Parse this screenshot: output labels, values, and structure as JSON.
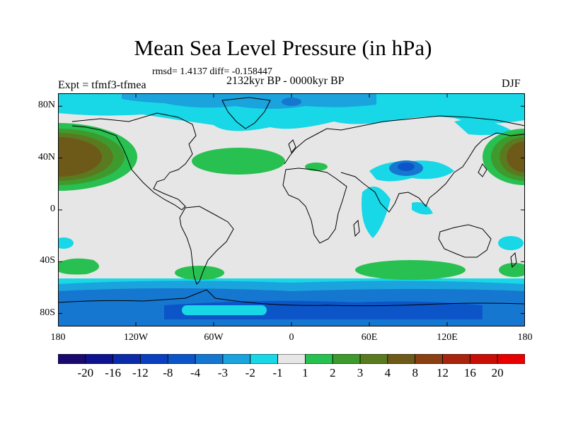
{
  "header": {
    "title": "Mean Sea Level Pressure (in hPa)",
    "stats": "rmsd= 1.4137 diff= -0.158447",
    "period": "2132kyr BP - 0000kyr BP",
    "experiment": "Expt = tfmf3-tfmea",
    "season": "DJF"
  },
  "axes": {
    "lat_labels": [
      "80N",
      "40N",
      "0",
      "40S",
      "80S"
    ],
    "lat_values": [
      80,
      40,
      0,
      -40,
      -80
    ],
    "lon_labels": [
      "180",
      "120W",
      "60W",
      "0",
      "60E",
      "120E",
      "180"
    ],
    "lon_values": [
      -180,
      -120,
      -60,
      0,
      60,
      120,
      180
    ],
    "lat_range": [
      -90,
      90
    ],
    "lon_range": [
      -180,
      180
    ]
  },
  "colorbar": {
    "labels": [
      "-20",
      "-16",
      "-12",
      "-8",
      "-4",
      "-3",
      "-2",
      "-1",
      "1",
      "2",
      "3",
      "4",
      "8",
      "12",
      "16",
      "20"
    ],
    "colors": [
      "#1a0a6e",
      "#0d138f",
      "#0b2ba8",
      "#0a3fbf",
      "#0b55c8",
      "#1577d0",
      "#1aa3dc",
      "#18d7e6",
      "#e6e6e6",
      "#28c050",
      "#3f9a2e",
      "#5a7a20",
      "#6e5a18",
      "#8a4012",
      "#a8240c",
      "#c80e06",
      "#e80000"
    ]
  },
  "map": {
    "background_color": "#e6e6e6",
    "anomaly_regions": [
      {
        "name": "north-pacific-high",
        "lon": -160,
        "lat": 40,
        "value": 8
      },
      {
        "name": "north-atlantic-high",
        "lon": -30,
        "lat": 37,
        "value": 2
      },
      {
        "name": "tibetan-low",
        "lon": 88,
        "lat": 32,
        "value": -4
      },
      {
        "name": "arctic-low",
        "lon": -40,
        "lat": 80,
        "value": -2
      },
      {
        "name": "southern-ocean-low",
        "lon": 0,
        "lat": -75,
        "value": -4
      },
      {
        "name": "southern-high-atlantic",
        "lon": -60,
        "lat": -45,
        "value": 2
      },
      {
        "name": "southern-high-indian",
        "lon": 90,
        "lat": -45,
        "value": 2
      }
    ]
  }
}
